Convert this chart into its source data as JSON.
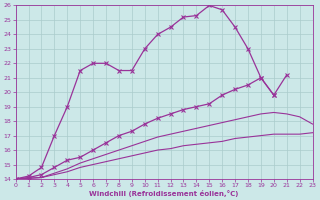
{
  "xlabel": "Windchill (Refroidissement éolien,°C)",
  "bg_color": "#cce8e8",
  "line_color": "#993399",
  "grid_color": "#aacccc",
  "xmin": 0,
  "xmax": 23,
  "ymin": 14,
  "ymax": 26,
  "xticks": [
    0,
    1,
    2,
    3,
    4,
    5,
    6,
    7,
    8,
    9,
    10,
    11,
    12,
    13,
    14,
    15,
    16,
    17,
    18,
    19,
    20,
    21,
    22,
    23
  ],
  "yticks": [
    14,
    15,
    16,
    17,
    18,
    19,
    20,
    21,
    22,
    23,
    24,
    25,
    26
  ],
  "line1_x": [
    0,
    1,
    2,
    3,
    4,
    5,
    6,
    7,
    8,
    9,
    10,
    11,
    12,
    13,
    14,
    15,
    16,
    17,
    18,
    19,
    20
  ],
  "line1_y": [
    14,
    14.2,
    14.8,
    17,
    19,
    21.5,
    22,
    22,
    21.5,
    21.5,
    23,
    24,
    24.5,
    25.2,
    25.3,
    26,
    25.7,
    24.5,
    23,
    21,
    19.8
  ],
  "line2_x": [
    0,
    1,
    2,
    3,
    4,
    5,
    6,
    7,
    8,
    9,
    10,
    11,
    12,
    13,
    14,
    15,
    16,
    17,
    18,
    19,
    20,
    21
  ],
  "line2_y": [
    14,
    14.1,
    14.3,
    14.8,
    15.3,
    15.5,
    16,
    16.5,
    17,
    17.3,
    17.8,
    18.2,
    18.5,
    18.8,
    19,
    19.2,
    19.8,
    20.2,
    20.5,
    21,
    19.8,
    21.2
  ],
  "line3_x": [
    0,
    1,
    2,
    3,
    4,
    5,
    6,
    7,
    8,
    9,
    10,
    11,
    12,
    13,
    14,
    15,
    16,
    17,
    18,
    19,
    20,
    21,
    22,
    23
  ],
  "line3_y": [
    14,
    14.05,
    14.1,
    14.3,
    14.5,
    14.8,
    15.0,
    15.2,
    15.4,
    15.6,
    15.8,
    16.0,
    16.1,
    16.3,
    16.4,
    16.5,
    16.6,
    16.8,
    16.9,
    17.0,
    17.1,
    17.1,
    17.1,
    17.2
  ],
  "line4_x": [
    0,
    1,
    2,
    3,
    4,
    5,
    6,
    7,
    8,
    9,
    10,
    11,
    12,
    13,
    14,
    15,
    16,
    17,
    18,
    19,
    20,
    21,
    22,
    23
  ],
  "line4_y": [
    14,
    14.05,
    14.1,
    14.4,
    14.7,
    15.1,
    15.4,
    15.7,
    16.0,
    16.3,
    16.6,
    16.9,
    17.1,
    17.3,
    17.5,
    17.7,
    17.9,
    18.1,
    18.3,
    18.5,
    18.6,
    18.5,
    18.3,
    17.8
  ]
}
